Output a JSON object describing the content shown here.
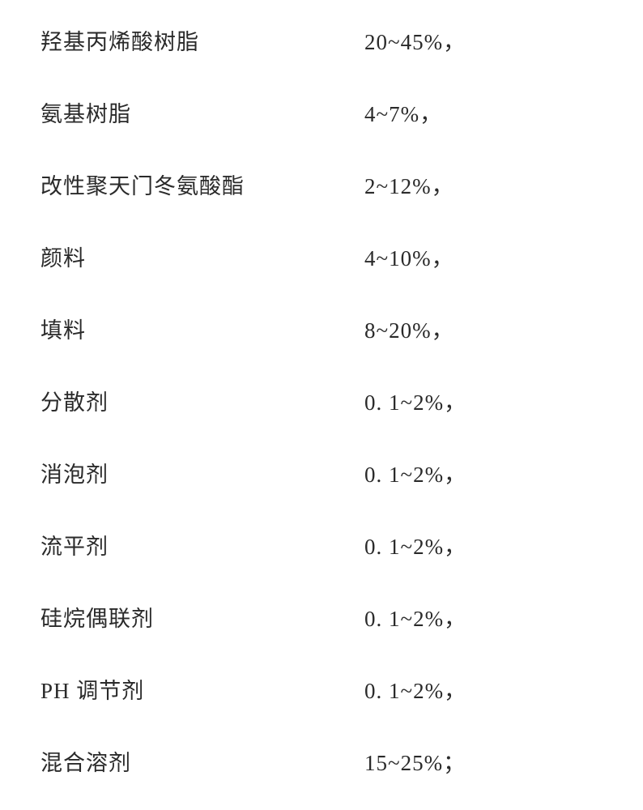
{
  "rows": [
    {
      "label": "羟基丙烯酸树脂",
      "value": "20~45%，"
    },
    {
      "label": "氨基树脂",
      "value": "4~7%，"
    },
    {
      "label": "改性聚天门冬氨酸酯",
      "value": "2~12%，"
    },
    {
      "label": "颜料",
      "value": "4~10%，"
    },
    {
      "label": "填料",
      "value": "8~20%，"
    },
    {
      "label": "分散剂",
      "value": "0. 1~2%，"
    },
    {
      "label": "消泡剂",
      "value": "0. 1~2%，"
    },
    {
      "label": "流平剂",
      "value": "0. 1~2%，"
    },
    {
      "label": "硅烷偶联剂",
      "value": "0. 1~2%，"
    },
    {
      "label": "PH 调节剂",
      "value": " 0. 1~2%，"
    },
    {
      "label": "混合溶剂",
      "value": "15~25%；"
    }
  ],
  "styling": {
    "fontSize": 27,
    "fontFamily": "SimSun",
    "textColor": "#2a2a2a",
    "backgroundColor": "#ffffff",
    "rowSpacing": 50,
    "labelMinWidth": 400,
    "letterSpacing": 1
  }
}
